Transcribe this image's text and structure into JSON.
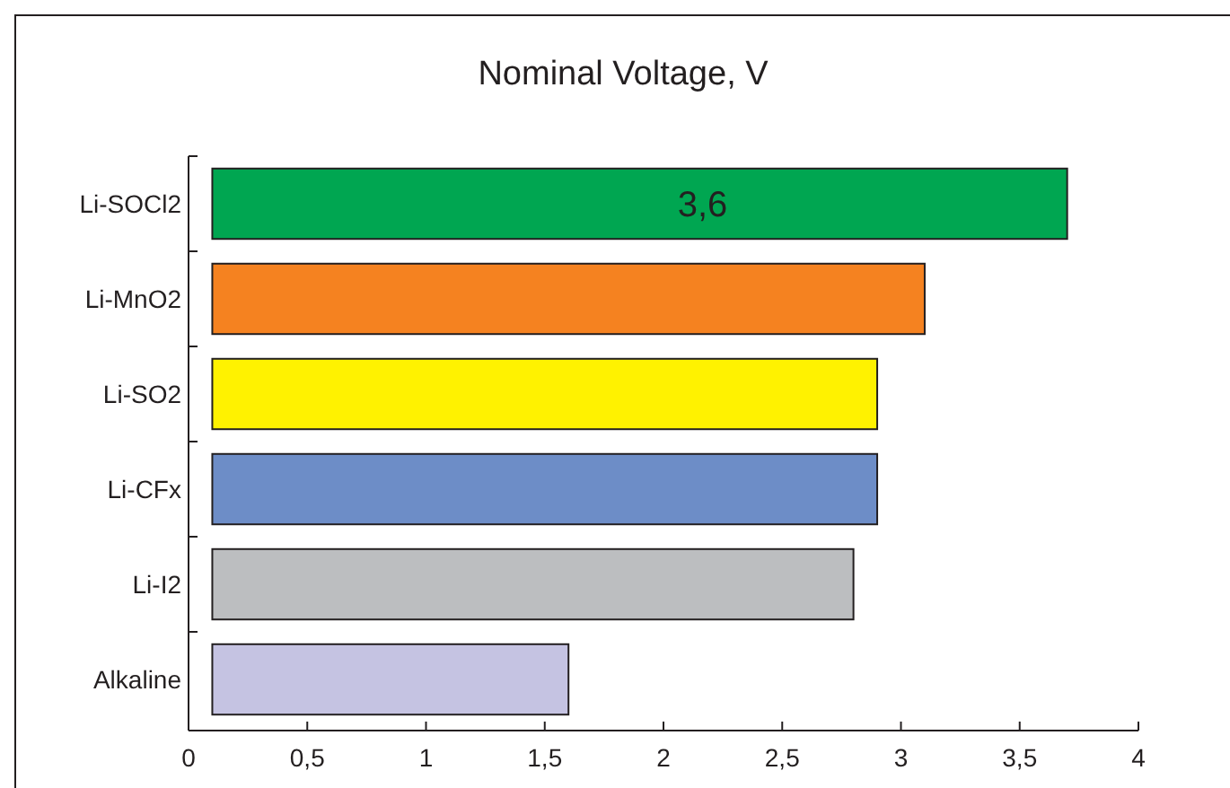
{
  "chart_data": {
    "type": "bar",
    "orientation": "horizontal",
    "title": "Nominal Voltage, V",
    "categories": [
      "Li-SOCl2",
      "Li-MnO2",
      "Li-SO2",
      "Li-CFx",
      "Li-I2",
      "Alkaline"
    ],
    "values": [
      3.6,
      3.0,
      2.8,
      2.8,
      2.7,
      1.5
    ],
    "base": [
      0.1,
      0.1,
      0.1,
      0.1,
      0.1,
      0.1
    ],
    "colors": [
      "#00a651",
      "#f58220",
      "#fff200",
      "#6d8dc7",
      "#bcbec0",
      "#c5c3e2"
    ],
    "value_labels": [
      "3,6",
      null,
      null,
      null,
      null,
      null
    ],
    "xlim": [
      0,
      4
    ],
    "xticks": [
      0,
      {
        "value": 0.5,
        "label": "0,5"
      },
      1,
      {
        "value": 1.5,
        "label": "1,5"
      },
      2,
      {
        "value": 2.5,
        "label": "2,5"
      },
      3,
      {
        "value": 3.5,
        "label": "3,5"
      },
      4
    ],
    "grid": false
  }
}
